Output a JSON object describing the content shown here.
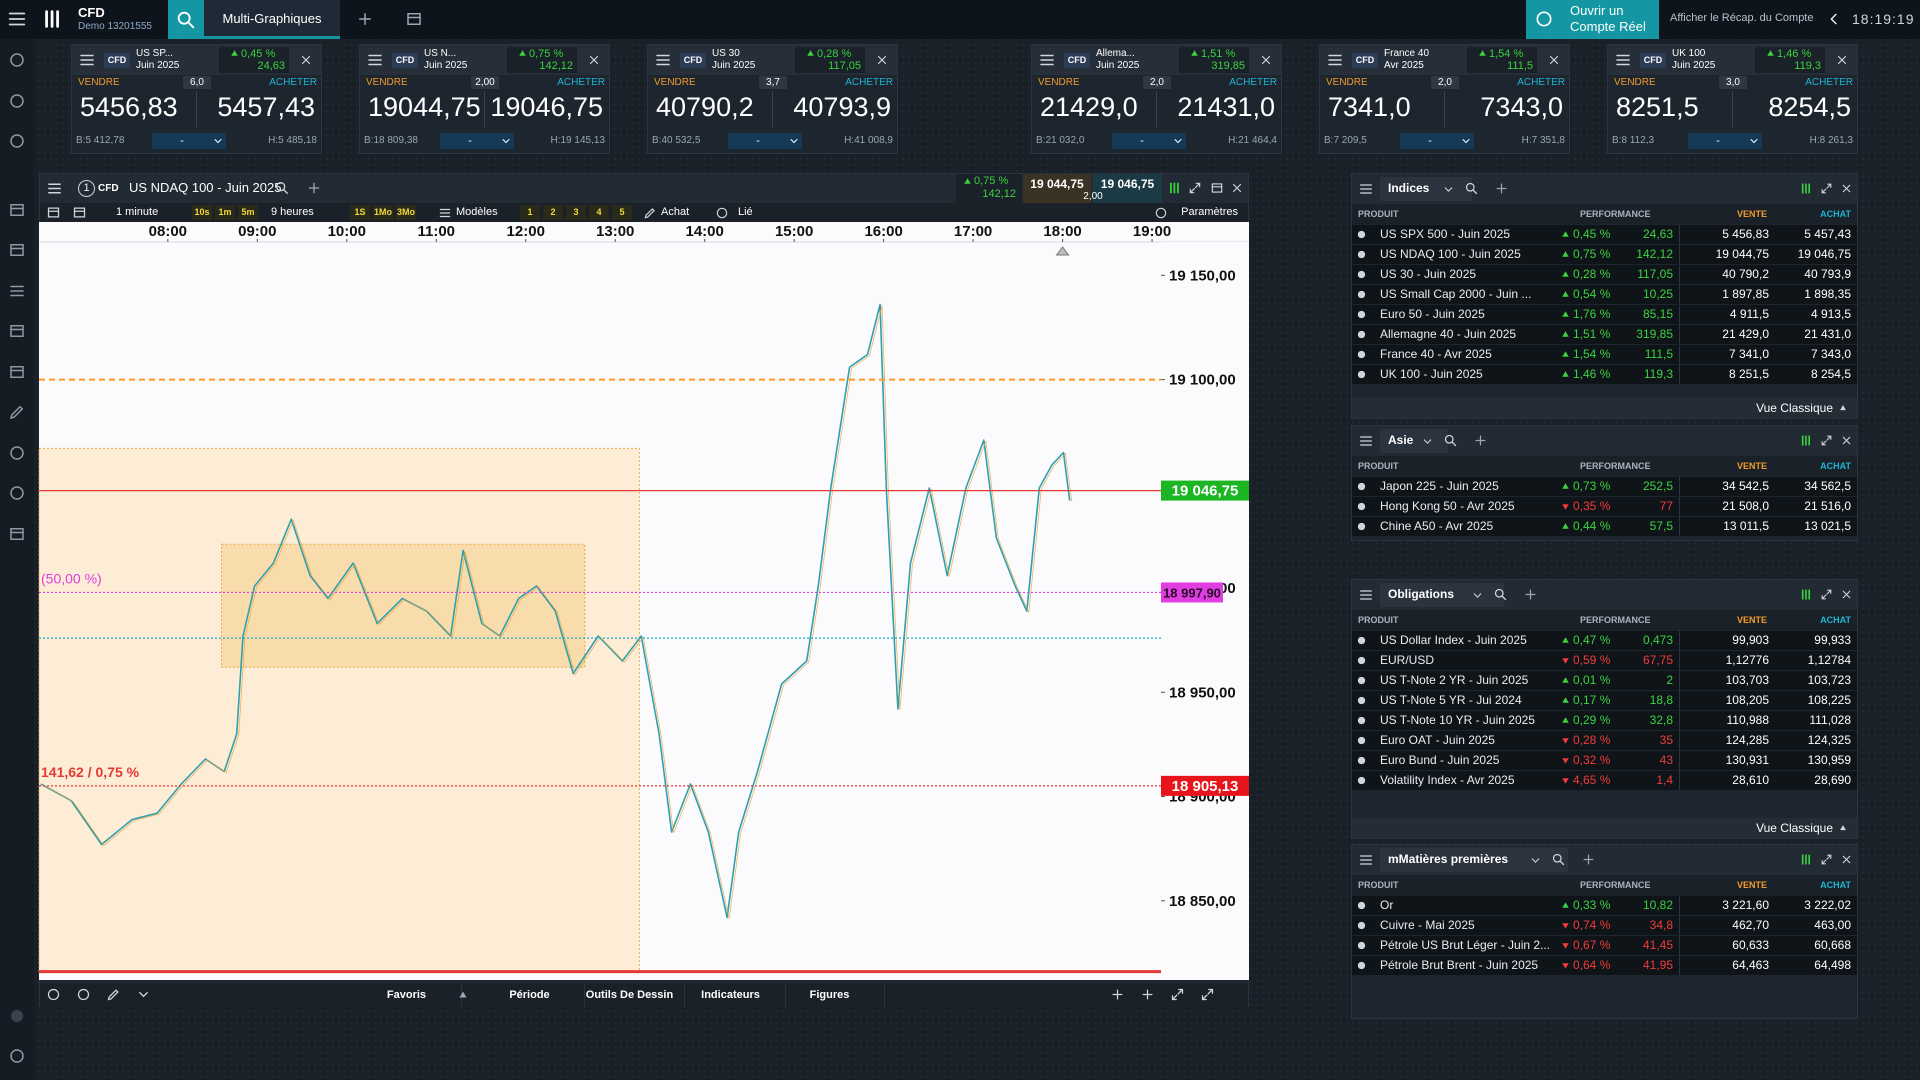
{
  "header": {
    "brand": "CFD",
    "account": "Demo 13201555",
    "tab": "Multi-Graphiques",
    "cta": [
      "Ouvrir un",
      "Compte Réel"
    ],
    "recap": "Afficher le Récap. du Compte",
    "clock": "18:19:19"
  },
  "ticker_labels": {
    "badge": "CFD",
    "sell": "VENDRE",
    "buy": "ACHETER",
    "qty": "-"
  },
  "tickers": [
    {
      "name": "US SP...",
      "expiry": "Juin 2025",
      "pct": "0,45 %",
      "change": "24,63",
      "spread": "6,0",
      "sell": "5456,83",
      "buy": "5457,43",
      "low": "B:5 412,78",
      "high": "H:5 485,18"
    },
    {
      "name": "US N...",
      "expiry": "Juin 2025",
      "pct": "0,75 %",
      "change": "142,12",
      "spread": "2,00",
      "sell": "19044,75",
      "buy": "19046,75",
      "low": "B:18 809,38",
      "high": "H:19 145,13"
    },
    {
      "name": "US 30",
      "expiry": "Juin 2025",
      "pct": "0,28 %",
      "change": "117,05",
      "spread": "3,7",
      "sell": "40790,2",
      "buy": "40793,9",
      "low": "B:40 532,5",
      "high": "H:41 008,9"
    },
    {
      "name": "Allema...",
      "expiry": "Juin 2025",
      "pct": "1,51 %",
      "change": "319,85",
      "spread": "2,0",
      "sell": "21429,0",
      "buy": "21431,0",
      "low": "B:21 032,0",
      "high": "H:21 464,4"
    },
    {
      "name": "France 40",
      "expiry": "Avr 2025",
      "pct": "1,54 %",
      "change": "111,5",
      "spread": "2,0",
      "sell": "7341,0",
      "buy": "7343,0",
      "low": "B:7 209,5",
      "high": "H:7 351,8"
    },
    {
      "name": "UK 100",
      "expiry": "Juin 2025",
      "pct": "1,46 %",
      "change": "119,3",
      "spread": "3,0",
      "sell": "8251,5",
      "buy": "8254,5",
      "low": "B:8 112,3",
      "high": "H:8 261,3"
    }
  ],
  "chart": {
    "index": "1",
    "badge": "CFD",
    "title": "US NDAQ 100 - Juin 2025",
    "pct": "0,75 %",
    "change": "142,12",
    "sell": "19 044,75",
    "buy": "19 046,75",
    "spread": "2,00",
    "toolbar": {
      "interval": "1 minute",
      "quick": [
        "10s",
        "1m",
        "5m"
      ],
      "range": "9 heures",
      "periods": [
        "1S",
        "1Mo",
        "3Mo"
      ],
      "models": "Modèles",
      "slots": [
        "1",
        "2",
        "3",
        "4",
        "5"
      ],
      "buy": "Achat",
      "linked": "Lié",
      "settings": "Paramètres"
    },
    "footer": [
      "Favoris",
      "Période",
      "Outils De Dessin",
      "Indicateurs",
      "Figures"
    ],
    "xlim": [
      6.56,
      19.1
    ],
    "ylim": [
      18812,
      19166
    ],
    "xticks": [
      {
        "value": 8,
        "label": "08:00"
      },
      {
        "value": 9,
        "label": "09:00"
      },
      {
        "value": 10,
        "label": "10:00"
      },
      {
        "value": 11,
        "label": "11:00"
      },
      {
        "value": 12,
        "label": "12:00"
      },
      {
        "value": 13,
        "label": "13:00"
      },
      {
        "value": 14,
        "label": "14:00"
      },
      {
        "value": 15,
        "label": "15:00"
      },
      {
        "value": 16,
        "label": "16:00"
      },
      {
        "value": 17,
        "label": "17:00"
      },
      {
        "value": 18,
        "label": "18:00"
      },
      {
        "value": 19,
        "label": "19:00"
      }
    ],
    "yticks": [
      {
        "value": 19150,
        "label": "19 150,00"
      },
      {
        "value": 19100,
        "label": "19 100,00"
      },
      {
        "value": 19000,
        "label": "19 000,00"
      },
      {
        "value": 18950,
        "label": "18 950,00"
      },
      {
        "value": 18900,
        "label": "18 900,00"
      },
      {
        "value": 18850,
        "label": "18 850,00"
      }
    ],
    "series": {
      "color": "#2f9fb0",
      "x": [
        6.58,
        6.92,
        7.26,
        7.6,
        7.88,
        8.15,
        8.42,
        8.63,
        8.77,
        8.84,
        8.97,
        9.18,
        9.38,
        9.59,
        9.79,
        10.07,
        10.34,
        10.62,
        10.89,
        11.16,
        11.3,
        11.51,
        11.71,
        11.92,
        12.12,
        12.33,
        12.53,
        12.81,
        13.08,
        13.29,
        13.49,
        13.63,
        13.84,
        14.04,
        14.25,
        14.38,
        14.59,
        14.86,
        15.14,
        15.27,
        15.41,
        15.62,
        15.82,
        15.96,
        16.03,
        16.16,
        16.3,
        16.51,
        16.71,
        16.92,
        17.12,
        17.26,
        17.47,
        17.6,
        17.74,
        17.88,
        18.01,
        18.08
      ],
      "values": [
        18906,
        18898,
        18877,
        18889,
        18892,
        18906,
        18918,
        18912,
        18930,
        18977,
        19001,
        19012,
        19033,
        19006,
        18995,
        19012,
        18983,
        18995,
        18989,
        18977,
        19018,
        18983,
        18977,
        18995,
        19001,
        18989,
        18959,
        18977,
        18965,
        18977,
        18930,
        18883,
        18906,
        18883,
        18842,
        18883,
        18912,
        18954,
        18965,
        19001,
        19048,
        19106,
        19112,
        19136,
        19048,
        18942,
        19012,
        19048,
        19006,
        19048,
        19071,
        19024,
        19001,
        18989,
        19048,
        19059,
        19065,
        19042
      ]
    },
    "zones": [
      {
        "x": [
          6.56,
          13.27
        ],
        "y": [
          18816,
          19067
        ],
        "color": "#fdebd2"
      },
      {
        "x": [
          8.6,
          12.66
        ],
        "y": [
          18962,
          19021
        ],
        "color": "#f8d9a6"
      }
    ],
    "levels": [
      {
        "value": 19100,
        "color": "#ff9a1a",
        "style": "dashed"
      },
      {
        "value": 19046.75,
        "color": "#e53935",
        "style": "solid",
        "label": "19 046,75",
        "label_color": "#1cb524"
      },
      {
        "value": 18997.9,
        "color": "#e03ee0",
        "style": "dotted",
        "label": "18 997,90",
        "label_color": "#e03ee0",
        "note": "(50,00 %)"
      },
      {
        "value": 18976,
        "color": "#19a8c9",
        "style": "dotted"
      },
      {
        "value": 18905.13,
        "color": "#e53935",
        "style": "dotted",
        "label": "18 905,13",
        "label_color": "#e8141c",
        "note": "141,62 / 0,75 %"
      },
      {
        "value": 18816,
        "color": "#e53935",
        "style": "thick"
      }
    ]
  },
  "panels": [
    {
      "title": "Indices",
      "columns": [
        "PRODUIT",
        "PERFORMANCE",
        "VENTE",
        "ACHAT"
      ],
      "footer": "Vue Classique",
      "rows": [
        {
          "name": "US SPX 500 - Juin 2025",
          "dir": "up",
          "pct": "0,45 %",
          "change": "24,63",
          "sell": "5 456,83",
          "buy": "5 457,43"
        },
        {
          "name": "US NDAQ 100 - Juin 2025",
          "dir": "up",
          "pct": "0,75 %",
          "change": "142,12",
          "sell": "19 044,75",
          "buy": "19 046,75"
        },
        {
          "name": "US 30 - Juin 2025",
          "dir": "up",
          "pct": "0,28 %",
          "change": "117,05",
          "sell": "40 790,2",
          "buy": "40 793,9"
        },
        {
          "name": "US Small Cap 2000 - Juin ...",
          "dir": "up",
          "pct": "0,54 %",
          "change": "10,25",
          "sell": "1 897,85",
          "buy": "1 898,35"
        },
        {
          "name": "Euro 50 - Juin 2025",
          "dir": "up",
          "pct": "1,76 %",
          "change": "85,15",
          "sell": "4 911,5",
          "buy": "4 913,5"
        },
        {
          "name": "Allemagne 40 - Juin 2025",
          "dir": "up",
          "pct": "1,51 %",
          "change": "319,85",
          "sell": "21 429,0",
          "buy": "21 431,0"
        },
        {
          "name": "France 40 - Avr 2025",
          "dir": "up",
          "pct": "1,54 %",
          "change": "111,5",
          "sell": "7 341,0",
          "buy": "7 343,0"
        },
        {
          "name": "UK 100 - Juin 2025",
          "dir": "up",
          "pct": "1,46 %",
          "change": "119,3",
          "sell": "8 251,5",
          "buy": "8 254,5"
        }
      ]
    },
    {
      "title": "Asie",
      "columns": [
        "PRODUIT",
        "PERFORMANCE",
        "VENTE",
        "ACHAT"
      ],
      "rows": [
        {
          "name": "Japon 225 - Juin 2025",
          "dir": "up",
          "pct": "0,73 %",
          "change": "252,5",
          "sell": "34 542,5",
          "buy": "34 562,5"
        },
        {
          "name": "Hong Kong 50 - Avr 2025",
          "dir": "down",
          "pct": "0,35 %",
          "change": "77",
          "sell": "21 508,0",
          "buy": "21 516,0"
        },
        {
          "name": "Chine A50 - Avr 2025",
          "dir": "up",
          "pct": "0,44 %",
          "change": "57,5",
          "sell": "13 011,5",
          "buy": "13 021,5"
        }
      ]
    },
    {
      "title": "Obligations",
      "columns": [
        "PRODUIT",
        "PERFORMANCE",
        "VENTE",
        "ACHAT"
      ],
      "footer": "Vue Classique",
      "rows": [
        {
          "name": "US Dollar Index - Juin 2025",
          "dir": "up",
          "pct": "0,47 %",
          "change": "0,473",
          "sell": "99,903",
          "buy": "99,933"
        },
        {
          "name": "EUR/USD",
          "dir": "down",
          "pct": "0,59 %",
          "change": "67,75",
          "sell": "1,12776",
          "buy": "1,12784"
        },
        {
          "name": "US T-Note 2 YR - Juin 2025",
          "dir": "up",
          "pct": "0,01 %",
          "change": "2",
          "sell": "103,703",
          "buy": "103,723"
        },
        {
          "name": "US T-Note 5 YR - Jui 2024",
          "dir": "up",
          "pct": "0,17 %",
          "change": "18,8",
          "sell": "108,205",
          "buy": "108,225"
        },
        {
          "name": "US T-Note 10 YR - Juin 2025",
          "dir": "up",
          "pct": "0,29 %",
          "change": "32,8",
          "sell": "110,988",
          "buy": "111,028"
        },
        {
          "name": "Euro OAT - Juin 2025",
          "dir": "down",
          "pct": "0,28 %",
          "change": "35",
          "sell": "124,285",
          "buy": "124,325"
        },
        {
          "name": "Euro Bund - Juin 2025",
          "dir": "down",
          "pct": "0,32 %",
          "change": "43",
          "sell": "130,931",
          "buy": "130,959"
        },
        {
          "name": "Volatility Index - Avr 2025",
          "dir": "down",
          "pct": "4,65 %",
          "change": "1,4",
          "sell": "28,610",
          "buy": "28,690"
        }
      ]
    },
    {
      "title": "mMatières premières",
      "columns": [
        "PRODUIT",
        "PERFORMANCE",
        "VENTE",
        "ACHAT"
      ],
      "rows": [
        {
          "name": "Or",
          "dir": "up",
          "pct": "0,33 %",
          "change": "10,82",
          "sell": "3 221,60",
          "buy": "3 222,02"
        },
        {
          "name": "Cuivre - Mai 2025",
          "dir": "down",
          "pct": "0,74 %",
          "change": "34,8",
          "sell": "462,70",
          "buy": "463,00"
        },
        {
          "name": "Pétrole US Brut Léger - Juin 2...",
          "dir": "down",
          "pct": "0,67 %",
          "change": "41,45",
          "sell": "60,633",
          "buy": "60,668"
        },
        {
          "name": "Pétrole Brut Brent - Juin 2025",
          "dir": "down",
          "pct": "0,64 %",
          "change": "41,95",
          "sell": "64,463",
          "buy": "64,498"
        }
      ]
    }
  ]
}
